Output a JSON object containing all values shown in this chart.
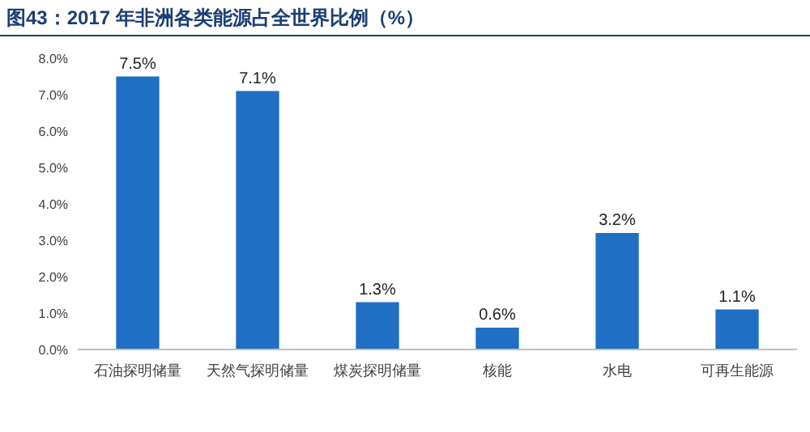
{
  "chart_data": {
    "type": "bar",
    "title": "图43：2017 年非洲各类能源占全世界比例（%）",
    "categories": [
      "石油探明储量",
      "天然气探明储量",
      "煤炭探明储量",
      "核能",
      "水电",
      "可再生能源"
    ],
    "values": [
      7.5,
      7.1,
      1.3,
      0.6,
      3.2,
      1.1
    ],
    "value_labels": [
      "7.5%",
      "7.1%",
      "1.3%",
      "0.6%",
      "3.2%",
      "1.1%"
    ],
    "color": "#1f6fc4",
    "ylim": [
      0,
      8
    ],
    "yticks": [
      {
        "value": 0,
        "label": "0.0%"
      },
      {
        "value": 1,
        "label": "1.0%"
      },
      {
        "value": 2,
        "label": "2.0%"
      },
      {
        "value": 3,
        "label": "3.0%"
      },
      {
        "value": 4,
        "label": "4.0%"
      },
      {
        "value": 5,
        "label": "5.0%"
      },
      {
        "value": 6,
        "label": "6.0%"
      },
      {
        "value": 7,
        "label": "7.0%"
      },
      {
        "value": 8,
        "label": "8.0%"
      }
    ],
    "grid": false
  }
}
